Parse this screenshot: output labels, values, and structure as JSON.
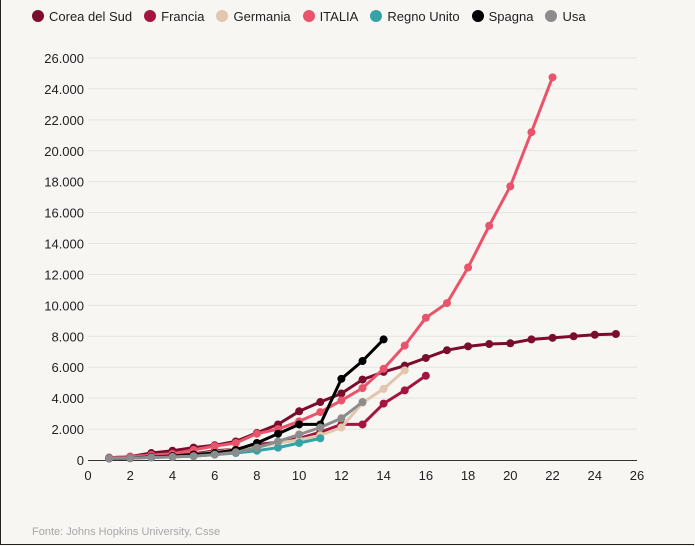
{
  "chart_data": {
    "type": "line",
    "title": "",
    "xlabel": "",
    "ylabel": "",
    "xlim": [
      0,
      26
    ],
    "ylim": [
      0,
      26000
    ],
    "x_ticks": [
      {
        "value": 0,
        "label": "0"
      },
      {
        "value": 2,
        "label": "2"
      },
      {
        "value": 4,
        "label": "4"
      },
      {
        "value": 6,
        "label": "6"
      },
      {
        "value": 8,
        "label": "8"
      },
      {
        "value": 10,
        "label": "10"
      },
      {
        "value": 12,
        "label": "12"
      },
      {
        "value": 14,
        "label": "14"
      },
      {
        "value": 16,
        "label": "16"
      },
      {
        "value": 18,
        "label": "18"
      },
      {
        "value": 20,
        "label": "20"
      },
      {
        "value": 22,
        "label": "22"
      },
      {
        "value": 24,
        "label": "24"
      },
      {
        "value": 26,
        "label": "26"
      }
    ],
    "y_ticks": [
      {
        "value": 0,
        "label": "0"
      },
      {
        "value": 2000,
        "label": "2.000"
      },
      {
        "value": 4000,
        "label": "4.000"
      },
      {
        "value": 6000,
        "label": "6.000"
      },
      {
        "value": 8000,
        "label": "8.000"
      },
      {
        "value": 10000,
        "label": "10.000"
      },
      {
        "value": 12000,
        "label": "12.000"
      },
      {
        "value": 14000,
        "label": "14.000"
      },
      {
        "value": 16000,
        "label": "16.000"
      },
      {
        "value": 18000,
        "label": "18.000"
      },
      {
        "value": 20000,
        "label": "20.000"
      },
      {
        "value": 22000,
        "label": "22.000"
      },
      {
        "value": 24000,
        "label": "24.000"
      },
      {
        "value": 26000,
        "label": "26.000"
      }
    ],
    "grid": true,
    "legend_position": "top-left",
    "series": [
      {
        "name": "Corea del Sud",
        "color": "#7a0c2e",
        "x": [
          1,
          2,
          3,
          4,
          5,
          6,
          7,
          8,
          9,
          10,
          11,
          12,
          13,
          14,
          15,
          16,
          17,
          18,
          19,
          20,
          21,
          22,
          23,
          24,
          25
        ],
        "y": [
          150,
          220,
          450,
          600,
          800,
          950,
          1200,
          1750,
          2300,
          3150,
          3750,
          4300,
          5200,
          5700,
          6100,
          6600,
          7100,
          7350,
          7500,
          7550,
          7800,
          7900,
          8000,
          8100,
          8150
        ]
      },
      {
        "name": "Francia",
        "color": "#a3143f",
        "x": [
          1,
          2,
          3,
          4,
          5,
          6,
          7,
          8,
          9,
          10,
          11,
          12,
          13,
          14,
          15,
          16
        ],
        "y": [
          100,
          120,
          200,
          300,
          400,
          600,
          700,
          1000,
          1150,
          1400,
          1800,
          2300,
          2300,
          3650,
          4500,
          5450
        ]
      },
      {
        "name": "Germania",
        "color": "#e2c6ad",
        "x": [
          1,
          2,
          3,
          4,
          5,
          6,
          7,
          8,
          9,
          10,
          11,
          12,
          13,
          14,
          15
        ],
        "y": [
          100,
          130,
          200,
          250,
          350,
          500,
          700,
          800,
          1100,
          1300,
          1600,
          2100,
          3700,
          4600,
          5800
        ]
      },
      {
        "name": "ITALIA",
        "color": "#e9546b",
        "x": [
          1,
          2,
          3,
          4,
          5,
          6,
          7,
          8,
          9,
          10,
          11,
          12,
          13,
          14,
          15,
          16,
          17,
          18,
          19,
          20,
          21,
          22
        ],
        "y": [
          150,
          220,
          320,
          400,
          650,
          900,
          1100,
          1700,
          2000,
          2500,
          3100,
          3850,
          4650,
          5900,
          7400,
          9200,
          10150,
          12450,
          15150,
          17700,
          21200,
          24750
        ]
      },
      {
        "name": "Regno Unito",
        "color": "#33a3a6",
        "x": [
          1,
          2,
          3,
          4,
          5,
          6,
          7,
          8,
          9,
          10,
          11
        ],
        "y": [
          100,
          120,
          160,
          200,
          250,
          350,
          450,
          600,
          800,
          1100,
          1400
        ]
      },
      {
        "name": "Spagna",
        "color": "#000000",
        "x": [
          1,
          2,
          3,
          4,
          5,
          6,
          7,
          8,
          9,
          10,
          11,
          12,
          13,
          14
        ],
        "y": [
          100,
          120,
          200,
          250,
          350,
          450,
          650,
          1100,
          1700,
          2300,
          2300,
          5250,
          6400,
          7800
        ]
      },
      {
        "name": "Usa",
        "color": "#8c8c8c",
        "x": [
          1,
          2,
          3,
          4,
          5,
          6,
          7,
          8,
          9,
          10,
          11,
          12,
          13
        ],
        "y": [
          100,
          120,
          170,
          200,
          250,
          350,
          500,
          800,
          1200,
          1650,
          2100,
          2700,
          3750
        ]
      }
    ],
    "source": "Fonte: Johns Hopkins University, Csse"
  }
}
